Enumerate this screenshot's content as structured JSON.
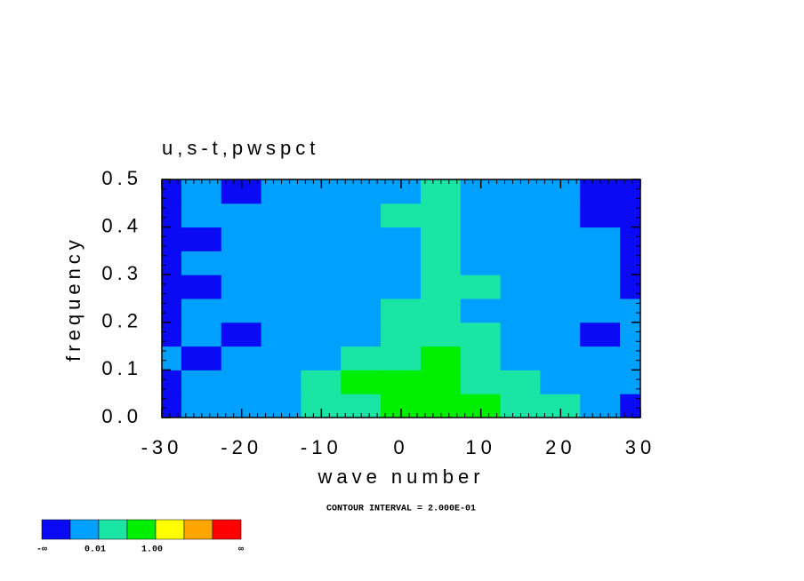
{
  "chart_data": {
    "type": "contour",
    "title": "u,s-t,pwspct",
    "x_label": "wave number",
    "y_label": "frequency",
    "footnote": "CONTOUR INTERVAL = 2.000E-01",
    "xlim": [
      -30,
      30
    ],
    "xticks": [
      -30,
      -20,
      -10,
      0,
      10,
      20,
      30
    ],
    "ylim": [
      0,
      0.5
    ],
    "yticks": [
      {
        "value": 0,
        "label": "0.0"
      },
      0.1,
      0.2,
      0.3,
      0.4,
      0.5
    ],
    "x": [
      -30,
      -25,
      -20,
      -15,
      -10,
      -5,
      0,
      5,
      10,
      15,
      20,
      25,
      30
    ],
    "y": [
      0.025,
      0.075,
      0.125,
      0.175,
      0.225,
      0.275,
      0.325,
      0.375,
      0.425,
      0.475
    ],
    "z": [
      [
        0.0005,
        0.005,
        0.005,
        0.005,
        0.05,
        0.05,
        0.5,
        0.5,
        0.5,
        0.05,
        0.05,
        0.005,
        0.0005
      ],
      [
        0.0005,
        0.005,
        0.005,
        0.005,
        0.05,
        0.5,
        0.5,
        0.5,
        0.05,
        0.05,
        0.005,
        0.005,
        0.005
      ],
      [
        0.005,
        0.0005,
        0.005,
        0.005,
        0.005,
        0.05,
        0.05,
        0.5,
        0.05,
        0.005,
        0.005,
        0.005,
        0.005
      ],
      [
        0.0005,
        0.005,
        0.0005,
        0.005,
        0.005,
        0.005,
        0.05,
        0.05,
        0.05,
        0.005,
        0.005,
        0.0005,
        0.005
      ],
      [
        0.0005,
        0.005,
        0.005,
        0.005,
        0.005,
        0.005,
        0.05,
        0.05,
        0.005,
        0.005,
        0.005,
        0.005,
        0.005
      ],
      [
        0.0005,
        0.0005,
        0.005,
        0.005,
        0.005,
        0.005,
        0.005,
        0.05,
        0.05,
        0.005,
        0.005,
        0.005,
        0.0005
      ],
      [
        0.0005,
        0.005,
        0.005,
        0.005,
        0.005,
        0.005,
        0.005,
        0.05,
        0.005,
        0.005,
        0.005,
        0.005,
        0.0005
      ],
      [
        0.0005,
        0.0005,
        0.005,
        0.005,
        0.005,
        0.005,
        0.005,
        0.05,
        0.005,
        0.005,
        0.005,
        0.005,
        0.0005
      ],
      [
        0.0005,
        0.005,
        0.005,
        0.005,
        0.005,
        0.005,
        0.05,
        0.05,
        0.005,
        0.005,
        0.005,
        0.0005,
        0.0005
      ],
      [
        0.0005,
        0.005,
        0.0005,
        0.005,
        0.005,
        0.005,
        0.005,
        0.05,
        0.005,
        0.005,
        0.005,
        0.0005,
        0.0005
      ]
    ],
    "levels": [
      0.001,
      0.01,
      0.1,
      1,
      10,
      100
    ],
    "level_labels": [
      null,
      "0.01",
      null,
      "1.00",
      null,
      null
    ],
    "colorbar_ends": [
      "-∞",
      "∞"
    ],
    "colors": [
      "#0a0af5",
      "#00a0ff",
      "#19e6a5",
      "#00ee00",
      "#ffff00",
      "#ffa500",
      "#ff0000"
    ]
  }
}
